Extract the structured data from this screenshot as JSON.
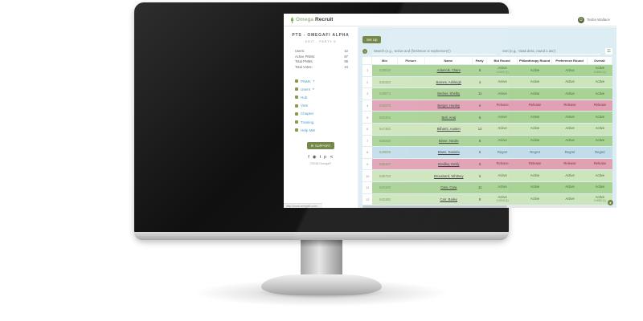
{
  "topbar": {
    "logo_omega": "Omega",
    "logo_recruit": "Recruit",
    "user_name": "Tasha Wallace",
    "avatar_glyph": "Ω"
  },
  "sidebar": {
    "org_title": "PTS - OMEGAFI ALPHA",
    "subtitle": "EDIT - PARTY 6",
    "stats": [
      {
        "label": "Users:",
        "value": "12"
      },
      {
        "label": "Active PNMs:",
        "value": "87"
      },
      {
        "label": "Total PNMs:",
        "value": "98"
      },
      {
        "label": "Total Votes:",
        "value": "24"
      }
    ],
    "menu": [
      {
        "label": "PNMs",
        "icon": "pnms-icon",
        "caret": true
      },
      {
        "label": "Users",
        "icon": "users-icon",
        "caret": true
      },
      {
        "label": "Hub",
        "icon": "hub-icon",
        "caret": false
      },
      {
        "label": "Vote",
        "icon": "vote-icon",
        "caret": false
      },
      {
        "label": "Chapter",
        "icon": "chapter-icon",
        "caret": false
      },
      {
        "label": "Training",
        "icon": "training-icon",
        "caret": false
      },
      {
        "label": "Help Me!",
        "icon": "help-icon",
        "caret": false
      }
    ],
    "support_label": "SUPPORT",
    "support_icon": "✉",
    "social": [
      {
        "name": "facebook-icon",
        "glyph": "f"
      },
      {
        "name": "instagram-icon",
        "glyph": "◉"
      },
      {
        "name": "twitter-icon",
        "glyph": "t"
      },
      {
        "name": "pinterest-icon",
        "glyph": "p"
      },
      {
        "name": "share-icon",
        "glyph": "≺"
      }
    ],
    "copyright": "©2018 OmegaFi"
  },
  "toolbar": {
    "setup_label": "Set Up",
    "search_placeholder": "Search (e.g., 'active and (freshman or sophomore)')",
    "sort_placeholder": "Sort (e.g., 'class desc, round 1 asc')",
    "menu_toggle_glyph": "☰",
    "help_glyph": "?"
  },
  "table": {
    "columns": [
      "Min",
      "Picture",
      "Name",
      "Party",
      "Bid Round",
      "Philanthropy Round",
      "Preference Round",
      "Overall"
    ],
    "rows": [
      {
        "num": "1",
        "min": "538029",
        "name": "Adamcik, Claire",
        "party": "8",
        "bid": "Active",
        "bid_sub": "0.0000 (1)",
        "phil": "Active",
        "pref": "Active",
        "overall": "Active",
        "overall_sub": "0.0000 (1)",
        "status": "active"
      },
      {
        "num": "2",
        "min": "542420",
        "name": "Barnes, Ashleigh",
        "party": "4",
        "bid": "Active",
        "phil": "Active",
        "pref": "Active",
        "overall": "Active",
        "status": "active"
      },
      {
        "num": "3",
        "min": "536873",
        "name": "Becker, Shelby",
        "party": "11",
        "bid": "Active",
        "phil": "Active",
        "pref": "Active",
        "overall": "Active",
        "status": "active"
      },
      {
        "num": "4",
        "min": "535578",
        "name": "Berger, Hanley",
        "party": "6",
        "bid": "Release",
        "phil": "Release",
        "pref": "Release",
        "overall": "Release",
        "status": "release"
      },
      {
        "num": "5",
        "min": "580304",
        "name": "Bell, Arial",
        "party": "5",
        "bid": "Active",
        "phil": "Active",
        "pref": "Active",
        "overall": "Active",
        "status": "active"
      },
      {
        "num": "6",
        "min": "547382",
        "name": "Bilhartz, Austen",
        "party": "12",
        "bid": "Active",
        "phil": "Active",
        "pref": "Active",
        "overall": "Active",
        "status": "active"
      },
      {
        "num": "7",
        "min": "526268",
        "name": "Binne, Nicole",
        "party": "8",
        "bid": "Active",
        "phil": "Active",
        "pref": "Active",
        "overall": "Active",
        "status": "active"
      },
      {
        "num": "8",
        "min": "529025",
        "name": "Blass, Daniela",
        "party": "5",
        "bid": "Regret",
        "phil": "Regret",
        "pref": "Regret",
        "overall": "Regret",
        "status": "regret"
      },
      {
        "num": "9",
        "min": "535167",
        "name": "Bradley, Emily",
        "party": "8",
        "bid": "Release",
        "phil": "Release",
        "pref": "Release",
        "overall": "Release",
        "status": "release"
      },
      {
        "num": "10",
        "min": "538720",
        "name": "Broussard, Whitney",
        "party": "6",
        "bid": "Active",
        "phil": "Active",
        "pref": "Active",
        "overall": "Active",
        "status": "active"
      },
      {
        "num": "11",
        "min": "540100",
        "name": "Cato, Cara",
        "party": "11",
        "bid": "Active",
        "phil": "Active",
        "pref": "Active",
        "overall": "Active",
        "status": "active"
      },
      {
        "num": "12",
        "min": "541182",
        "name": "Carr, Bailey",
        "party": "8",
        "bid": "Active",
        "bid_sub": "0.0000 (1)",
        "phil": "Active",
        "pref": "Active",
        "overall": "Active",
        "overall_sub": "0.0000 (1)",
        "status": "active"
      }
    ]
  },
  "statusbar": {
    "url": "http://local.omegafi.com/..."
  },
  "colors": {
    "accent_olive": "#76874a",
    "link_blue": "#4a9cc7",
    "row_active_dark": "#a9d295",
    "row_active_light": "#cde5bd",
    "row_release": "#e0a1b3",
    "row_regret": "#c2dde9",
    "content_bg": "#dcedf3"
  }
}
